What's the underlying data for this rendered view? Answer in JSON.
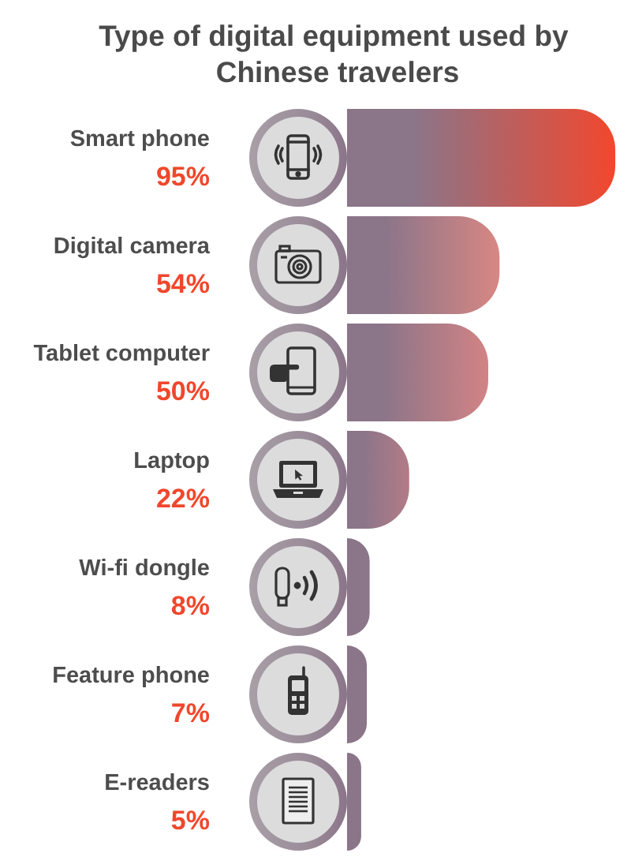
{
  "chart_data": {
    "type": "bar",
    "orientation": "horizontal",
    "title": "Type of digital equipment used by Chinese travelers",
    "categories": [
      "Smart phone",
      "Digital camera",
      "Tablet computer",
      "Laptop",
      "Wi-fi dongle",
      "Feature phone",
      "E-readers"
    ],
    "values": [
      95,
      54,
      50,
      22,
      8,
      7,
      5
    ],
    "value_labels": [
      "95%",
      "54%",
      "50%",
      "22%",
      "8%",
      "7%",
      "5%"
    ],
    "colors": [
      "#f2472d",
      "#d88783",
      "#d28384",
      "#b37b86",
      "#8c768a",
      "#8b7589",
      "#8b7589"
    ]
  }
}
